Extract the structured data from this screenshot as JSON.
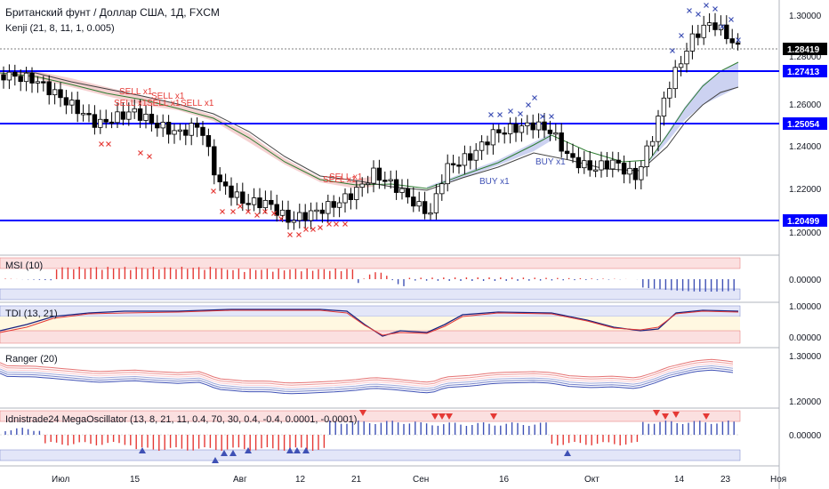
{
  "header": {
    "symbol_title": "Британский фунт / Доллар США, 1Д, FXCM",
    "indicator_title": "Kenji (21, 8, 11, 1, 0.005)"
  },
  "price_axis": {
    "ticks": [
      "1.30000",
      "1.28000",
      "1.26000",
      "1.24000",
      "1.22000",
      "1.20000"
    ],
    "current_price": "1.28419",
    "levels": [
      "1.27413",
      "1.25054",
      "1.20499"
    ]
  },
  "panes": {
    "msi": {
      "title": "MSI (10)",
      "axis": [
        "0.00000"
      ]
    },
    "tdi": {
      "title": "TDI (13, 21)",
      "axis": [
        "1.00000",
        "0.00000"
      ]
    },
    "ranger": {
      "title": "Ranger (20)",
      "axis": [
        "1.30000",
        "1.20000"
      ]
    },
    "mega": {
      "title": "Idnistrade24 MegaOscillator (13, 8, 21, 11, 0.4, 70, 30, 0.4, -0.4, 0.0001, -0.0001)",
      "axis": [
        "0.00000"
      ]
    }
  },
  "time_axis": {
    "labels": [
      "Июл",
      "15",
      "Авг",
      "12",
      "21",
      "Сен",
      "16",
      "Окт",
      "14",
      "23",
      "Ноя"
    ]
  },
  "signals": {
    "sell": [
      "SELL x1",
      "SELL x1",
      "SELL x1",
      "SELL x1",
      "SELL x1",
      "SELL x1",
      "SELL x1"
    ],
    "buy": [
      "BUY x1",
      "BUY x1"
    ]
  },
  "colors": {
    "level_line": "#0000ff",
    "up_candle": "#ffffff",
    "down_candle": "#000000",
    "sell_marker": "#e53935",
    "buy_marker": "#3f51b5",
    "cloud_bear": "#f3c9c9",
    "cloud_bull": "#c7cdf0"
  }
}
